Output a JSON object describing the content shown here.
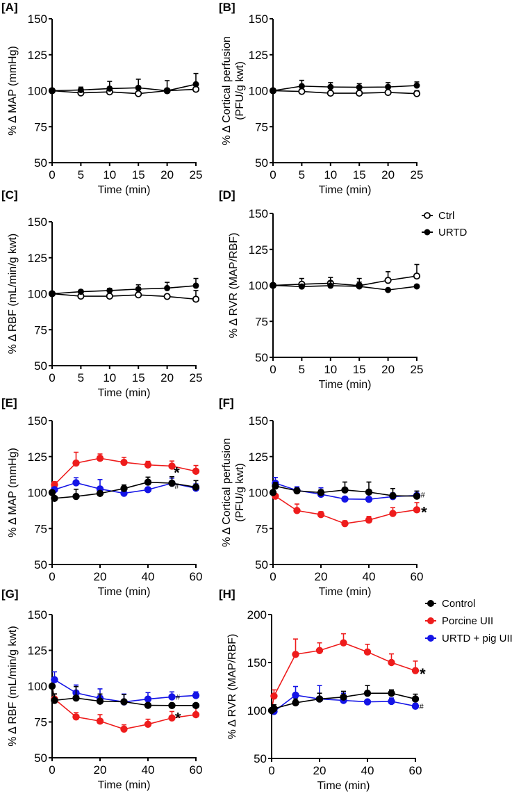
{
  "figure": {
    "legend_top": {
      "entries": [
        {
          "label": "Ctrl",
          "marker": "open-circle",
          "color": "#000000"
        },
        {
          "label": "URTD",
          "marker": "filled-circle",
          "color": "#000000"
        }
      ]
    },
    "legend_bottom": {
      "entries": [
        {
          "label": "Control",
          "marker": "filled-circle",
          "color": "#000000"
        },
        {
          "label": "Porcine UII",
          "marker": "filled-circle",
          "color": "#ee1c1c"
        },
        {
          "label": "URTD + pig UII",
          "marker": "filled-circle",
          "color": "#1414e6"
        }
      ]
    }
  },
  "chart_data": [
    {
      "id": "A",
      "panel_label": "[A]",
      "type": "line",
      "ylabel": "% Δ MAP (mmHg)",
      "ylabel2": "",
      "xlabel": "Time (min)",
      "ylim": [
        50,
        150
      ],
      "yticks": [
        50,
        75,
        100,
        125,
        150
      ],
      "xlim": [
        0,
        25
      ],
      "xticks": [
        0,
        5,
        10,
        15,
        20,
        25
      ],
      "x": [
        0,
        5,
        10,
        15,
        20,
        25
      ],
      "series": [
        {
          "name": "Ctrl",
          "marker": "open",
          "color": "#000000",
          "values": [
            100,
            98.5,
            99.2,
            98,
            100,
            101
          ],
          "err": [
            0,
            0,
            0,
            0,
            0,
            0
          ]
        },
        {
          "name": "URTD",
          "marker": "filled",
          "color": "#000000",
          "values": [
            100,
            100.5,
            101.5,
            102,
            100,
            104.5
          ],
          "err": [
            0,
            2,
            5,
            6,
            7,
            7.5
          ]
        }
      ],
      "annotations": []
    },
    {
      "id": "B",
      "panel_label": "[B]",
      "type": "line",
      "ylabel": "% Δ Cortical perfusion",
      "ylabel2": "(PFU/g kwt)",
      "xlabel": "Time (min)",
      "ylim": [
        50,
        150
      ],
      "yticks": [
        50,
        75,
        100,
        125,
        150
      ],
      "xlim": [
        0,
        25
      ],
      "xticks": [
        0,
        5,
        10,
        15,
        20,
        25
      ],
      "x": [
        0,
        5,
        10,
        15,
        20,
        25
      ],
      "series": [
        {
          "name": "Ctrl",
          "marker": "open",
          "color": "#000000",
          "values": [
            100,
            99.5,
            98.3,
            98.3,
            98.8,
            98
          ],
          "err": [
            0,
            0,
            0,
            0,
            0,
            2
          ]
        },
        {
          "name": "URTD",
          "marker": "filled",
          "color": "#000000",
          "values": [
            100,
            103.2,
            102.6,
            102.4,
            102.6,
            103.6
          ],
          "err": [
            0,
            4,
            3,
            2.5,
            3,
            2.5
          ]
        }
      ],
      "annotations": []
    },
    {
      "id": "C",
      "panel_label": "[C]",
      "type": "line",
      "ylabel": "% Δ RBF (mL/min/g kwt)",
      "ylabel2": "",
      "xlabel": "Time (min)",
      "ylim": [
        50,
        150
      ],
      "yticks": [
        50,
        75,
        100,
        125,
        150
      ],
      "xlim": [
        0,
        25
      ],
      "xticks": [
        0,
        5,
        10,
        15,
        20,
        25
      ],
      "x": [
        0,
        5,
        10,
        15,
        20,
        25
      ],
      "series": [
        {
          "name": "Ctrl",
          "marker": "open",
          "color": "#000000",
          "values": [
            100,
            98.3,
            98.3,
            99.2,
            98.1,
            96.2
          ],
          "err": [
            0,
            0,
            0,
            0,
            0,
            6
          ]
        },
        {
          "name": "URTD",
          "marker": "filled",
          "color": "#000000",
          "values": [
            100,
            101.4,
            102.2,
            103.2,
            103.9,
            105.6
          ],
          "err": [
            0,
            1,
            1.5,
            3,
            4,
            5
          ]
        }
      ],
      "annotations": []
    },
    {
      "id": "D",
      "panel_label": "[D]",
      "type": "line",
      "ylabel": "% Δ RVR (MAP/RBF)",
      "ylabel2": "",
      "xlabel": "Time (min)",
      "ylim": [
        50,
        150
      ],
      "yticks": [
        50,
        75,
        100,
        125,
        150
      ],
      "xlim": [
        0,
        25
      ],
      "xticks": [
        0,
        5,
        10,
        15,
        20,
        25
      ],
      "x": [
        0,
        5,
        10,
        15,
        20,
        25
      ],
      "series": [
        {
          "name": "Ctrl",
          "marker": "open",
          "color": "#000000",
          "values": [
            100,
            100.8,
            101.5,
            99.8,
            103.5,
            106.5
          ],
          "err": [
            0,
            4,
            4,
            5,
            6,
            8
          ]
        },
        {
          "name": "URTD",
          "marker": "filled",
          "color": "#000000",
          "values": [
            100,
            99.2,
            99.8,
            99.3,
            96.8,
            99.3
          ],
          "err": [
            0,
            0,
            3,
            3,
            0,
            0
          ]
        }
      ],
      "annotations": []
    },
    {
      "id": "E",
      "panel_label": "[E]",
      "type": "line",
      "ylabel": "% Δ MAP (mmHg)",
      "ylabel2": "",
      "xlabel": "Time (min)",
      "ylim": [
        50,
        150
      ],
      "yticks": [
        50,
        75,
        100,
        125,
        150
      ],
      "xlim": [
        0,
        60
      ],
      "xticks": [
        0,
        20,
        40,
        60
      ],
      "x": [
        0,
        1,
        10,
        20,
        30,
        40,
        50,
        60
      ],
      "series": [
        {
          "name": "Porcine UII",
          "marker": "filled",
          "color": "#ee1c1c",
          "values": [
            null,
            105.5,
            120.5,
            123.8,
            121,
            119.2,
            118.4,
            114.8
          ],
          "err": [
            0,
            2,
            7.5,
            3,
            3.5,
            2.5,
            3.5,
            4
          ]
        },
        {
          "name": "URTD + pig UII",
          "marker": "filled",
          "color": "#1414e6",
          "values": [
            null,
            102,
            106.8,
            102.5,
            99.5,
            102,
            106.5,
            103
          ],
          "err": [
            0,
            0,
            3.5,
            6.5,
            0,
            0,
            3.5,
            3
          ]
        },
        {
          "name": "Control",
          "marker": "filled",
          "color": "#000000",
          "values": [
            100,
            96,
            97.3,
            99.4,
            102.8,
            107.2,
            106.5,
            103.8
          ],
          "err": [
            0,
            0,
            5,
            0,
            2.5,
            3.5,
            4.5,
            4.5
          ]
        }
      ],
      "annotations": [
        {
          "text": "*",
          "x": 52,
          "y": 115,
          "kind": "asterisk"
        },
        {
          "text": "#",
          "x": 52,
          "y": 104.5,
          "kind": "hash"
        }
      ]
    },
    {
      "id": "F",
      "panel_label": "[F]",
      "type": "line",
      "ylabel": "% Δ Cortical perfusion",
      "ylabel2": "(PFU/g kwt)",
      "xlabel": "Time (min)",
      "ylim": [
        50,
        150
      ],
      "yticks": [
        50,
        75,
        100,
        125,
        150
      ],
      "xlim": [
        0,
        60
      ],
      "xticks": [
        0,
        20,
        40,
        60
      ],
      "x": [
        0,
        1,
        10,
        20,
        30,
        40,
        50,
        60
      ],
      "series": [
        {
          "name": "Porcine UII",
          "marker": "filled",
          "color": "#ee1c1c",
          "values": [
            null,
            97.5,
            87.5,
            84.7,
            78.4,
            80.9,
            85.5,
            88
          ],
          "err": [
            0,
            0,
            4.5,
            2,
            2,
            2.5,
            4,
            5
          ]
        },
        {
          "name": "URTD + pig UII",
          "marker": "filled",
          "color": "#1414e6",
          "values": [
            null,
            106.5,
            101.5,
            98.8,
            95.5,
            95.3,
            97.2,
            98
          ],
          "err": [
            0,
            4,
            2.5,
            4.5,
            0,
            0,
            2.5,
            3
          ]
        },
        {
          "name": "Control",
          "marker": "filled",
          "color": "#000000",
          "values": [
            100,
            104.5,
            101.2,
            100,
            101.8,
            100.3,
            97.8,
            97.5
          ],
          "err": [
            0,
            2.5,
            2,
            2,
            5.5,
            7,
            5,
            3.5
          ]
        }
      ],
      "annotations": [
        {
          "text": "#",
          "x": 62.5,
          "y": 98.5,
          "kind": "hash"
        },
        {
          "text": "*",
          "x": 63,
          "y": 87.5,
          "kind": "asterisk"
        }
      ]
    },
    {
      "id": "G",
      "panel_label": "[G]",
      "type": "line",
      "ylabel": "% Δ RBF (mL/min/g kwt)",
      "ylabel2": "",
      "xlabel": "Time (min)",
      "ylim": [
        50,
        150
      ],
      "yticks": [
        50,
        75,
        100,
        125,
        150
      ],
      "xlim": [
        0,
        60
      ],
      "xticks": [
        0,
        20,
        40,
        60
      ],
      "x": [
        0,
        1,
        10,
        20,
        30,
        40,
        50,
        60
      ],
      "series": [
        {
          "name": "Porcine UII",
          "marker": "filled",
          "color": "#ee1c1c",
          "values": [
            null,
            91,
            78.5,
            75.6,
            70,
            73.4,
            77.8,
            80.1
          ],
          "err": [
            0,
            3.5,
            3,
            4.5,
            3,
            3.5,
            4.5,
            5
          ]
        },
        {
          "name": "URTD + pig UII",
          "marker": "filled",
          "color": "#1414e6",
          "values": [
            null,
            104.5,
            95.3,
            91.6,
            89,
            91,
            92.5,
            93.5
          ],
          "err": [
            0,
            5.5,
            5.5,
            6.5,
            5.5,
            4.5,
            3.5,
            2.5
          ]
        },
        {
          "name": "Control",
          "marker": "filled",
          "color": "#000000",
          "values": [
            100,
            90.1,
            91.7,
            89.5,
            89.1,
            86.6,
            86.5,
            86.5
          ],
          "err": [
            0,
            4.5,
            8,
            5,
            5,
            0,
            0,
            0
          ]
        }
      ],
      "annotations": [
        {
          "text": "#",
          "x": 52.5,
          "y": 92.5,
          "kind": "hash"
        },
        {
          "text": "*",
          "x": 52.5,
          "y": 79,
          "kind": "asterisk"
        }
      ]
    },
    {
      "id": "H",
      "panel_label": "[H]",
      "type": "line",
      "ylabel": "% Δ RVR (MAP/RBF)",
      "ylabel2": "",
      "xlabel": "Time (min)",
      "ylim": [
        50,
        200
      ],
      "yticks": [
        50,
        100,
        150,
        200
      ],
      "xlim": [
        0,
        60
      ],
      "xticks": [
        0,
        20,
        40,
        60
      ],
      "x": [
        0,
        1,
        10,
        20,
        30,
        40,
        50,
        60
      ],
      "series": [
        {
          "name": "Porcine UII",
          "marker": "filled",
          "color": "#ee1c1c",
          "values": [
            null,
            115,
            158.5,
            162.5,
            170.5,
            161,
            150,
            141.5
          ],
          "err": [
            0,
            6.5,
            16,
            8,
            9.5,
            8,
            9,
            10
          ]
        },
        {
          "name": "URTD + pig UII",
          "marker": "filled",
          "color": "#1414e6",
          "values": [
            null,
            99,
            116,
            112,
            110.5,
            109,
            109.5,
            104.5
          ],
          "err": [
            0,
            0,
            9,
            14,
            7.5,
            0,
            3.5,
            3
          ]
        },
        {
          "name": "Control",
          "marker": "filled",
          "color": "#000000",
          "values": [
            100,
            102,
            108,
            112,
            114,
            118,
            118,
            112
          ],
          "err": [
            0,
            4,
            4,
            6,
            6,
            8,
            3.5,
            5
          ]
        }
      ],
      "annotations": [
        {
          "text": "*",
          "x": 63,
          "y": 140,
          "kind": "asterisk"
        },
        {
          "text": "#",
          "x": 62.5,
          "y": 104.5,
          "kind": "hash"
        }
      ]
    }
  ]
}
